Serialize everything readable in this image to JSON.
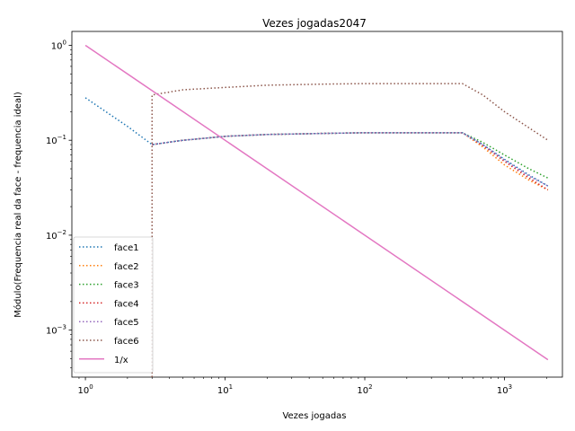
{
  "chart_data": {
    "type": "line",
    "title": "Vezes jogadas2047",
    "xlabel": "Vezes jogadas",
    "ylabel": "Módulo(Frequencia real da face - frequencia ideal)",
    "xscale": "log",
    "yscale": "log",
    "xlim": [
      0.8,
      2600
    ],
    "ylim": [
      0.00032,
      1.4
    ],
    "xticks": [
      {
        "value": 1,
        "base": "10",
        "exp": "0"
      },
      {
        "value": 10,
        "base": "10",
        "exp": "1"
      },
      {
        "value": 100,
        "base": "10",
        "exp": "2"
      },
      {
        "value": 1000,
        "base": "10",
        "exp": "3"
      }
    ],
    "yticks": [
      {
        "value": 0.001,
        "base": "10",
        "exp": "−3"
      },
      {
        "value": 0.01,
        "base": "10",
        "exp": "−2"
      },
      {
        "value": 0.1,
        "base": "10",
        "exp": "−1"
      },
      {
        "value": 1,
        "base": "10",
        "exp": "0"
      }
    ],
    "grid": false,
    "legend_position": "lower-left",
    "series": [
      {
        "name": "face1",
        "color": "#1f77b4",
        "style": "dotted",
        "x": [
          1,
          2,
          3,
          5,
          10,
          20,
          50,
          100,
          200,
          500,
          700,
          1000,
          1500,
          2047
        ],
        "y": [
          0.28,
          0.14,
          0.09,
          0.1,
          0.11,
          0.115,
          0.118,
          0.12,
          0.12,
          0.12,
          0.09,
          0.063,
          0.043,
          0.033
        ]
      },
      {
        "name": "face2",
        "color": "#ff7f0e",
        "style": "dotted",
        "x": [
          3,
          5,
          10,
          20,
          50,
          100,
          200,
          500,
          700,
          1000,
          1500,
          2047
        ],
        "y": [
          0.09,
          0.1,
          0.11,
          0.115,
          0.118,
          0.12,
          0.12,
          0.12,
          0.085,
          0.055,
          0.038,
          0.03
        ]
      },
      {
        "name": "face3",
        "color": "#2ca02c",
        "style": "dotted",
        "x": [
          3,
          5,
          10,
          20,
          50,
          100,
          200,
          500,
          700,
          1000,
          1500,
          2047
        ],
        "y": [
          0.09,
          0.1,
          0.11,
          0.115,
          0.118,
          0.12,
          0.12,
          0.12,
          0.095,
          0.07,
          0.05,
          0.04
        ]
      },
      {
        "name": "face4",
        "color": "#d62728",
        "style": "dotted",
        "x": [
          3,
          5,
          10,
          20,
          50,
          100,
          200,
          500,
          700,
          1000,
          1500,
          2047
        ],
        "y": [
          0.09,
          0.1,
          0.11,
          0.115,
          0.118,
          0.12,
          0.12,
          0.12,
          0.088,
          0.06,
          0.04,
          0.03
        ]
      },
      {
        "name": "face5",
        "color": "#9467bd",
        "style": "dotted",
        "x": [
          3,
          5,
          10,
          20,
          50,
          100,
          200,
          500,
          700,
          1000,
          1500,
          2047
        ],
        "y": [
          0.09,
          0.1,
          0.11,
          0.115,
          0.118,
          0.12,
          0.12,
          0.12,
          0.09,
          0.062,
          0.042,
          0.033
        ]
      },
      {
        "name": "face6",
        "color": "#8c564b",
        "style": "dotted",
        "x": [
          3,
          3,
          3,
          5,
          10,
          20,
          50,
          100,
          200,
          500,
          700,
          1000,
          1500,
          2047
        ],
        "y": [
          0.00032,
          0.09,
          0.3,
          0.34,
          0.36,
          0.38,
          0.39,
          0.395,
          0.395,
          0.395,
          0.3,
          0.2,
          0.135,
          0.1
        ]
      },
      {
        "name": "1/x",
        "color": "#e377c2",
        "style": "solid",
        "x": [
          1,
          2047
        ],
        "y": [
          1,
          0.000488
        ]
      }
    ]
  }
}
